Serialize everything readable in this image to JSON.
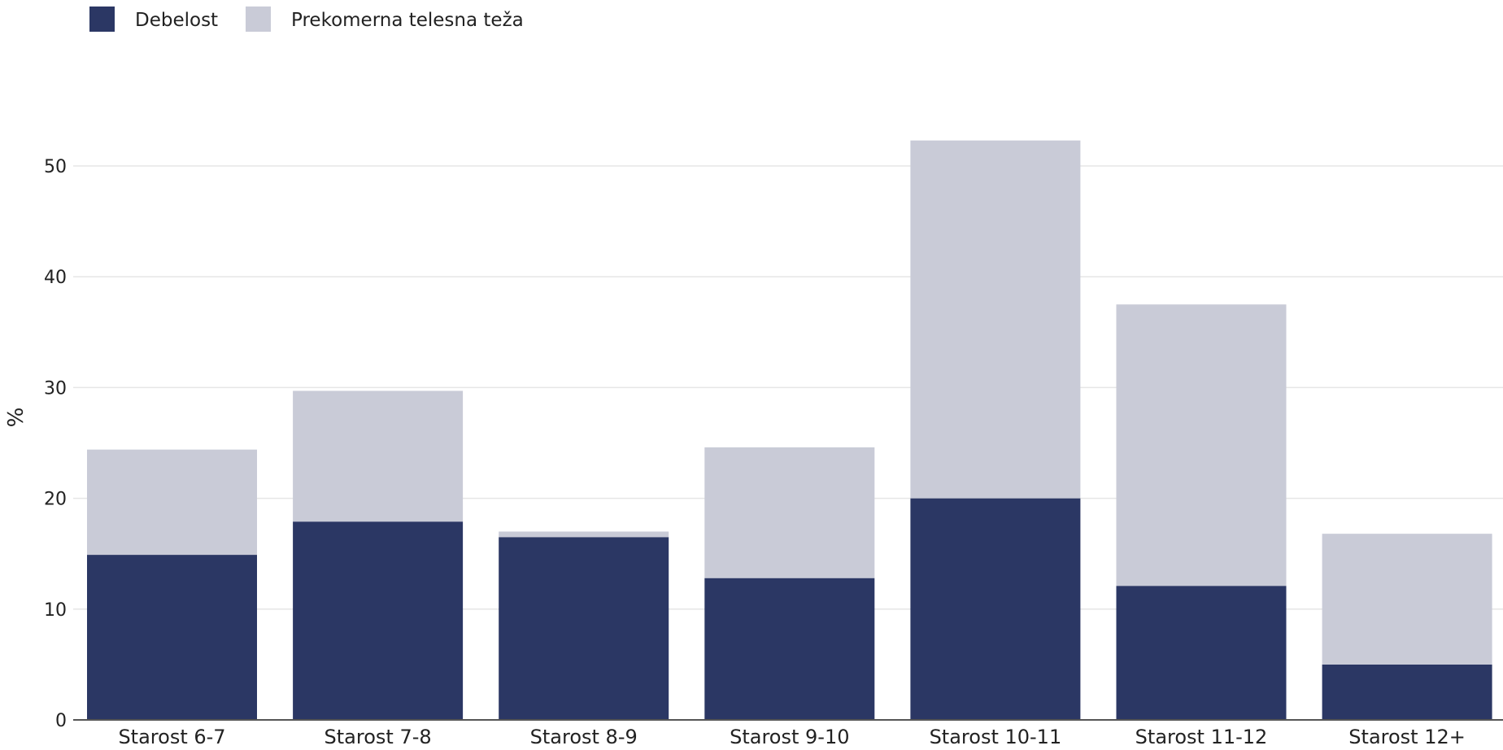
{
  "chart_data": {
    "type": "bar",
    "stacked": true,
    "categories": [
      "Starost 6-7",
      "Starost 7-8",
      "Starost 8-9",
      "Starost 9-10",
      "Starost 10-11",
      "Starost 11-12",
      "Starost 12+"
    ],
    "series": [
      {
        "name": "Debelost",
        "color": "#2b3764",
        "values": [
          14.9,
          17.9,
          16.5,
          12.8,
          20.0,
          12.1,
          5.0
        ]
      },
      {
        "name": "Prekomerna telesna teža",
        "color": "#c9cbd7",
        "values": [
          9.5,
          11.8,
          0.5,
          11.8,
          32.3,
          25.4,
          11.8
        ]
      }
    ],
    "yticks": [
      0,
      10,
      20,
      30,
      40,
      50
    ],
    "ylim": [
      0,
      55
    ],
    "ylabel": "%",
    "grid": true,
    "legend_position": "top-left"
  }
}
